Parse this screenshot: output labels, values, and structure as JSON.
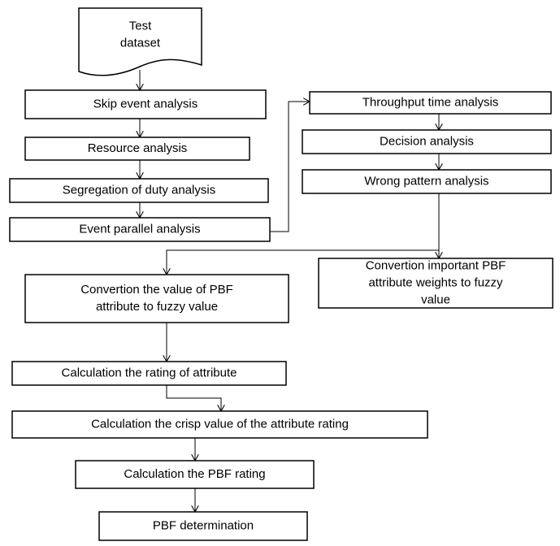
{
  "nodes": [
    {
      "lines": [
        "Test",
        "dataset"
      ]
    },
    {
      "lines": [
        "Skip event analysis"
      ]
    },
    {
      "lines": [
        "Resource  analysis"
      ]
    },
    {
      "lines": [
        "Segregation of duty analysis"
      ]
    },
    {
      "lines": [
        "Event parallel  analysis"
      ]
    },
    {
      "lines": [
        "Throughput time analysis"
      ]
    },
    {
      "lines": [
        "Decision  analysis"
      ]
    },
    {
      "lines": [
        "Wrong pattern  analysis"
      ]
    },
    {
      "lines": [
        "Convertion important  PBF",
        "attribute weights to fuzzy",
        "value"
      ]
    },
    {
      "lines": [
        "Convertion  the value of PBF",
        "attribute to fuzzy value"
      ]
    },
    {
      "lines": [
        "Calculation the rating of attribute"
      ]
    },
    {
      "lines": [
        "Calculation  the crisp  value of the attribute  rating"
      ]
    },
    {
      "lines": [
        "Calculation the PBF rating"
      ]
    },
    {
      "lines": [
        "PBF determination"
      ]
    }
  ]
}
